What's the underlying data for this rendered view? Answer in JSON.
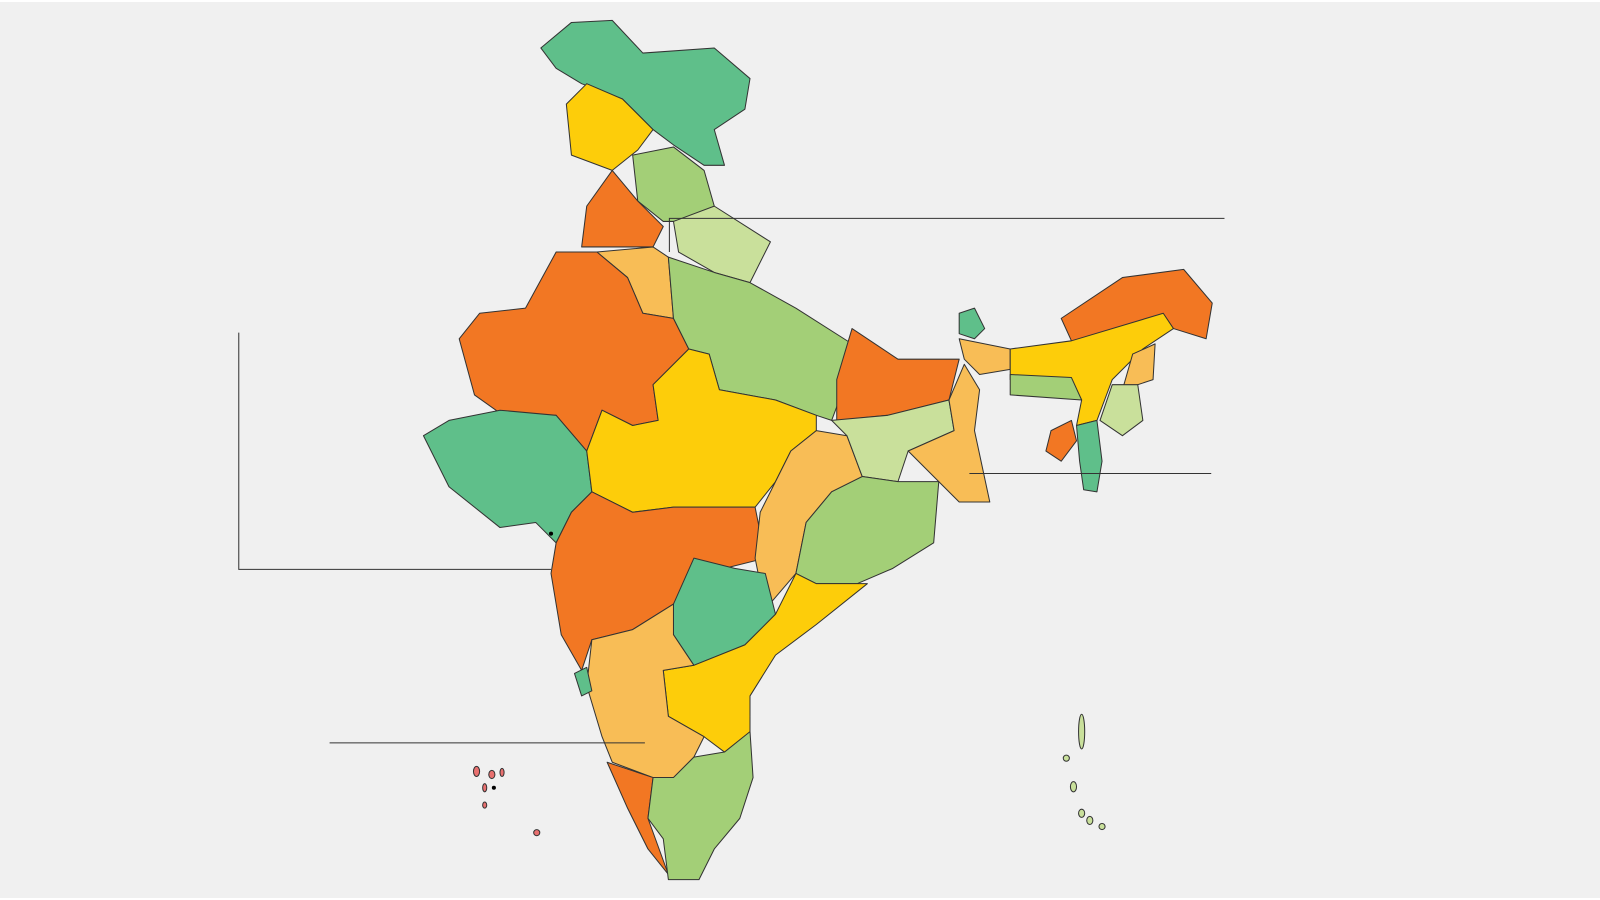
{
  "map": {
    "colors": [
      "#5fbf8a",
      "#a3cf77",
      "#c9e09b",
      "#fdcd0a",
      "#f8bd56",
      "#f27723",
      "#e8706f"
    ],
    "background": "#f0f0f0",
    "border_color": "#333333"
  }
}
